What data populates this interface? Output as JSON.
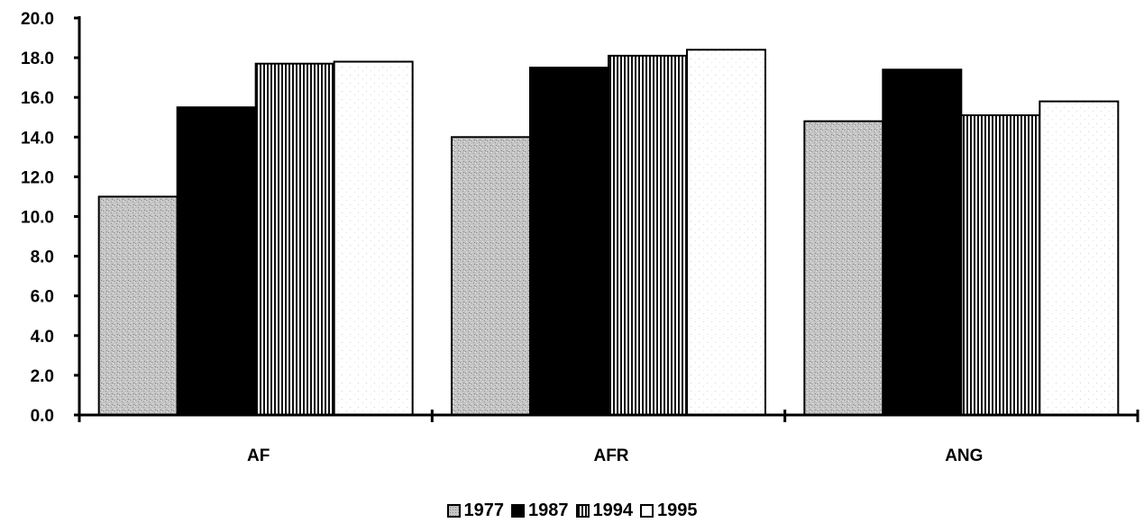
{
  "chart_data": {
    "type": "bar",
    "title": "",
    "xlabel": "",
    "ylabel": "",
    "categories": [
      "AF",
      "AFR",
      "ANG"
    ],
    "series": [
      {
        "name": "1977",
        "values": [
          11.0,
          14.0,
          14.8
        ],
        "pattern": "stipple",
        "color": "#bdbdbd"
      },
      {
        "name": "1987",
        "values": [
          15.5,
          17.5,
          17.4
        ],
        "pattern": "solid",
        "color": "#000000"
      },
      {
        "name": "1994",
        "values": [
          17.7,
          18.1,
          15.1
        ],
        "pattern": "vertical-stripes",
        "color": "#000000"
      },
      {
        "name": "1995",
        "values": [
          17.8,
          18.4,
          15.8
        ],
        "pattern": "light-dots",
        "color": "#ffffff"
      }
    ],
    "ylim": [
      0,
      20
    ],
    "yticks": [
      "0.0",
      "2.0",
      "4.0",
      "6.0",
      "8.0",
      "10.0",
      "12.0",
      "14.0",
      "16.0",
      "18.0",
      "20.0"
    ],
    "grid": false,
    "legend_position": "bottom-center"
  }
}
